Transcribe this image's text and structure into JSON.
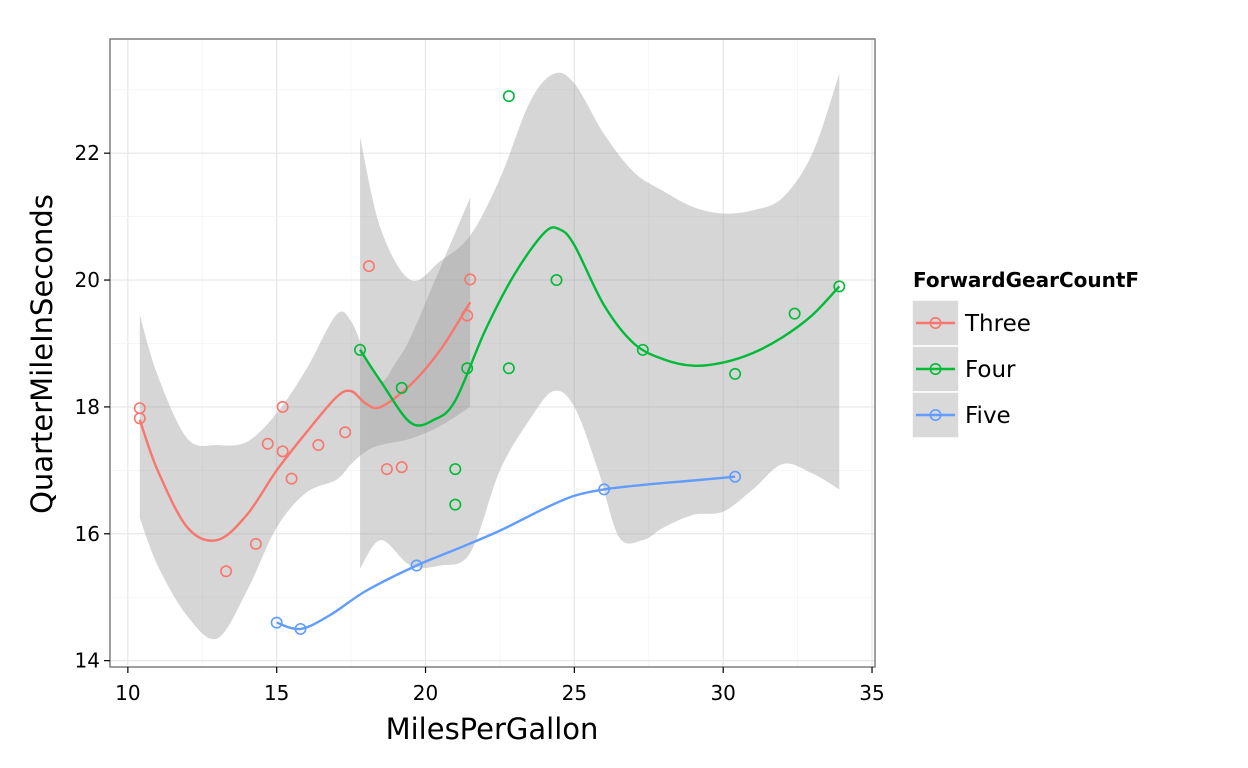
{
  "chart_data": {
    "type": "scatter",
    "xlabel": "MilesPerGallon",
    "ylabel": "QuarterMileInSeconds",
    "xlim": [
      9.4,
      35.1
    ],
    "ylim": [
      13.9,
      23.8
    ],
    "xticks": [
      10,
      15,
      20,
      25,
      30,
      35
    ],
    "yticks": [
      14,
      16,
      18,
      20,
      22
    ],
    "grid": true,
    "smoother": "loess with confidence band",
    "legend": {
      "title": "ForwardGearCountF",
      "placement": "right",
      "entries": [
        "Three",
        "Four",
        "Five"
      ]
    },
    "series": [
      {
        "name": "Three",
        "color": "#F8766D",
        "points": [
          [
            10.4,
            17.98
          ],
          [
            10.4,
            17.82
          ],
          [
            13.3,
            15.41
          ],
          [
            14.3,
            15.84
          ],
          [
            14.7,
            17.42
          ],
          [
            15.2,
            18.0
          ],
          [
            15.2,
            17.3
          ],
          [
            15.5,
            16.87
          ],
          [
            16.4,
            17.4
          ],
          [
            17.3,
            17.6
          ],
          [
            18.1,
            20.22
          ],
          [
            18.7,
            17.02
          ],
          [
            19.2,
            17.05
          ],
          [
            21.4,
            19.44
          ],
          [
            21.5,
            20.01
          ]
        ],
        "fit": [
          [
            10.4,
            17.8
          ],
          [
            11.0,
            17.0
          ],
          [
            12.0,
            16.1
          ],
          [
            13.0,
            15.9
          ],
          [
            14.0,
            16.3
          ],
          [
            15.0,
            17.0
          ],
          [
            16.0,
            17.6
          ],
          [
            17.0,
            18.15
          ],
          [
            17.5,
            18.25
          ],
          [
            18.0,
            18.05
          ],
          [
            18.5,
            18.0
          ],
          [
            19.5,
            18.35
          ],
          [
            20.5,
            18.9
          ],
          [
            21.5,
            19.65
          ]
        ],
        "band_upper": [
          [
            10.4,
            19.45
          ],
          [
            11.0,
            18.5
          ],
          [
            12.0,
            17.5
          ],
          [
            13.0,
            17.4
          ],
          [
            14.0,
            17.45
          ],
          [
            15.0,
            17.9
          ],
          [
            16.0,
            18.6
          ],
          [
            17.0,
            19.45
          ],
          [
            17.5,
            19.35
          ],
          [
            18.0,
            18.8
          ],
          [
            18.5,
            18.4
          ],
          [
            19.0,
            18.7
          ],
          [
            19.5,
            19.1
          ],
          [
            20.5,
            20.2
          ],
          [
            21.5,
            21.3
          ]
        ],
        "band_lower": [
          [
            10.4,
            16.25
          ],
          [
            11.0,
            15.5
          ],
          [
            12.0,
            14.7
          ],
          [
            13.0,
            14.35
          ],
          [
            14.0,
            15.1
          ],
          [
            15.0,
            16.1
          ],
          [
            16.0,
            16.65
          ],
          [
            17.0,
            16.85
          ],
          [
            17.5,
            17.1
          ],
          [
            18.0,
            17.3
          ],
          [
            18.5,
            17.4
          ],
          [
            19.5,
            17.5
          ],
          [
            20.5,
            17.7
          ],
          [
            21.5,
            18.0
          ]
        ]
      },
      {
        "name": "Four",
        "color": "#00BA38",
        "points": [
          [
            17.8,
            18.9
          ],
          [
            19.2,
            18.3
          ],
          [
            21.0,
            17.02
          ],
          [
            21.0,
            16.46
          ],
          [
            21.4,
            18.61
          ],
          [
            22.8,
            22.9
          ],
          [
            22.8,
            18.61
          ],
          [
            24.4,
            20.0
          ],
          [
            27.3,
            18.9
          ],
          [
            30.4,
            18.52
          ],
          [
            32.4,
            19.47
          ],
          [
            33.9,
            19.9
          ]
        ],
        "fit": [
          [
            17.8,
            18.9
          ],
          [
            18.5,
            18.4
          ],
          [
            19.5,
            17.75
          ],
          [
            20.3,
            17.8
          ],
          [
            21.0,
            18.1
          ],
          [
            22.0,
            19.2
          ],
          [
            23.0,
            20.1
          ],
          [
            24.0,
            20.75
          ],
          [
            24.5,
            20.8
          ],
          [
            25.0,
            20.55
          ],
          [
            26.0,
            19.6
          ],
          [
            27.0,
            19.0
          ],
          [
            28.0,
            18.75
          ],
          [
            29.0,
            18.65
          ],
          [
            30.0,
            18.7
          ],
          [
            31.0,
            18.85
          ],
          [
            32.0,
            19.1
          ],
          [
            33.0,
            19.45
          ],
          [
            33.9,
            19.9
          ]
        ],
        "band_upper": [
          [
            17.8,
            22.25
          ],
          [
            18.5,
            20.8
          ],
          [
            19.5,
            20.0
          ],
          [
            20.5,
            20.3
          ],
          [
            21.5,
            20.7
          ],
          [
            22.5,
            21.6
          ],
          [
            23.5,
            22.8
          ],
          [
            24.3,
            23.25
          ],
          [
            25.0,
            23.1
          ],
          [
            26.0,
            22.3
          ],
          [
            27.0,
            21.7
          ],
          [
            28.0,
            21.4
          ],
          [
            29.0,
            21.15
          ],
          [
            30.0,
            21.05
          ],
          [
            31.0,
            21.1
          ],
          [
            32.0,
            21.3
          ],
          [
            33.0,
            22.0
          ],
          [
            33.9,
            23.25
          ]
        ],
        "band_lower": [
          [
            17.8,
            15.45
          ],
          [
            18.5,
            15.9
          ],
          [
            19.5,
            15.5
          ],
          [
            20.5,
            15.5
          ],
          [
            21.5,
            15.7
          ],
          [
            22.5,
            17.0
          ],
          [
            23.5,
            17.8
          ],
          [
            24.3,
            18.25
          ],
          [
            25.0,
            18.0
          ],
          [
            25.8,
            17.0
          ],
          [
            26.5,
            15.95
          ],
          [
            27.3,
            15.9
          ],
          [
            28.0,
            16.1
          ],
          [
            29.0,
            16.3
          ],
          [
            30.0,
            16.35
          ],
          [
            31.0,
            16.7
          ],
          [
            32.0,
            17.1
          ],
          [
            33.0,
            16.95
          ],
          [
            33.9,
            16.7
          ]
        ]
      },
      {
        "name": "Five",
        "color": "#619CFF",
        "points": [
          [
            15.0,
            14.6
          ],
          [
            15.8,
            14.5
          ],
          [
            19.7,
            15.5
          ],
          [
            26.0,
            16.7
          ],
          [
            30.4,
            16.9
          ]
        ],
        "fit": [
          [
            15.0,
            14.6
          ],
          [
            15.8,
            14.5
          ],
          [
            16.8,
            14.72
          ],
          [
            18.0,
            15.1
          ],
          [
            19.7,
            15.5
          ],
          [
            21.0,
            15.75
          ],
          [
            22.5,
            16.05
          ],
          [
            24.0,
            16.4
          ],
          [
            25.0,
            16.6
          ],
          [
            26.0,
            16.7
          ],
          [
            27.5,
            16.78
          ],
          [
            29.0,
            16.84
          ],
          [
            30.4,
            16.9
          ]
        ]
      }
    ]
  }
}
